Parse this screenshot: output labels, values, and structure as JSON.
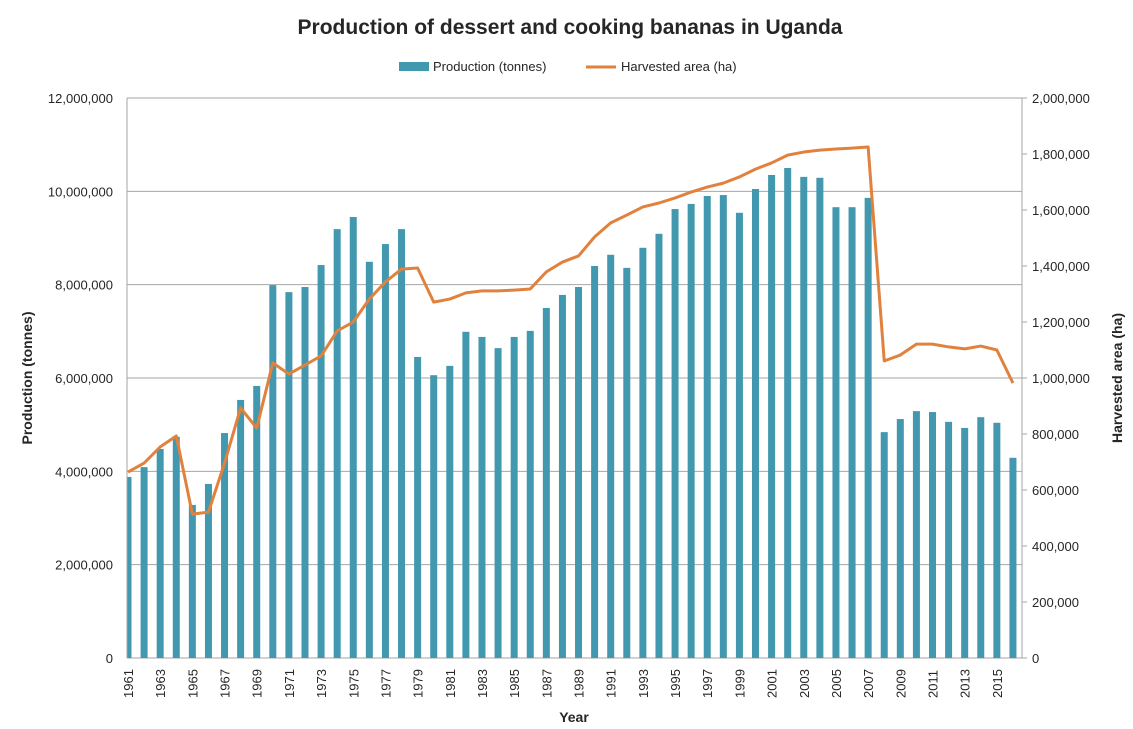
{
  "chart_data": {
    "type": "bar+line",
    "title": "Production of dessert and cooking bananas in Uganda",
    "xlabel": "Year",
    "ylabel": "Production (tonnes)",
    "y2label": "Harvested area (ha)",
    "ylim": [
      0,
      12000000
    ],
    "y2lim": [
      0,
      2000000
    ],
    "yticks": [
      "0",
      "2,000,000",
      "4,000,000",
      "6,000,000",
      "8,000,000",
      "10,000,000",
      "12,000,000"
    ],
    "y2ticks": [
      "0",
      "200,000",
      "400,000",
      "600,000",
      "800,000",
      "1,000,000",
      "1,200,000",
      "1,400,000",
      "1,600,000",
      "1,800,000",
      "2,000,000"
    ],
    "grid": true,
    "legend_position": "top",
    "categories": [
      1961,
      1962,
      1963,
      1964,
      1965,
      1966,
      1967,
      1968,
      1969,
      1970,
      1971,
      1972,
      1973,
      1974,
      1975,
      1976,
      1977,
      1978,
      1979,
      1980,
      1981,
      1982,
      1983,
      1984,
      1985,
      1986,
      1987,
      1988,
      1989,
      1990,
      1991,
      1992,
      1993,
      1994,
      1995,
      1996,
      1997,
      1998,
      1999,
      2000,
      2001,
      2002,
      2003,
      2004,
      2005,
      2006,
      2007,
      2008,
      2009,
      2010,
      2011,
      2012,
      2013,
      2014,
      2015,
      2016
    ],
    "series": [
      {
        "name": "Production (tonnes)",
        "type": "bar",
        "axis": "left",
        "color": "#4298AE",
        "values": [
          3880000,
          4090000,
          4480000,
          4740000,
          3280000,
          3730000,
          4820000,
          5530000,
          5830000,
          7990000,
          7840000,
          7950000,
          8420000,
          9190000,
          9450000,
          8490000,
          8870000,
          9190000,
          6450000,
          6060000,
          6260000,
          6990000,
          6880000,
          6640000,
          6880000,
          7010000,
          7500000,
          7780000,
          7950000,
          8400000,
          8640000,
          8360000,
          8790000,
          9090000,
          9620000,
          9730000,
          9900000,
          9920000,
          9540000,
          10050000,
          10350000,
          10500000,
          10310000,
          10290000,
          9660000,
          9660000,
          9860000,
          4840000,
          5120000,
          5290000,
          5270000,
          5060000,
          4930000,
          5160000,
          5040000,
          4290000
        ]
      },
      {
        "name": "Harvested area (ha)",
        "type": "line",
        "axis": "right",
        "color": "#E0823D",
        "values": [
          664000,
          696000,
          754000,
          793000,
          514000,
          521000,
          696000,
          893000,
          821000,
          1054000,
          1014000,
          1046000,
          1079000,
          1168000,
          1200000,
          1282000,
          1343000,
          1389000,
          1393000,
          1271000,
          1282000,
          1304000,
          1311000,
          1311000,
          1314000,
          1318000,
          1379000,
          1414000,
          1436000,
          1504000,
          1554000,
          1582000,
          1611000,
          1625000,
          1643000,
          1664000,
          1682000,
          1696000,
          1718000,
          1746000,
          1768000,
          1796000,
          1807000,
          1814000,
          1818000,
          1821000,
          1825000,
          1061000,
          1082000,
          1121000,
          1121000,
          1111000,
          1104000,
          1114000,
          1100000,
          982000
        ]
      }
    ]
  }
}
